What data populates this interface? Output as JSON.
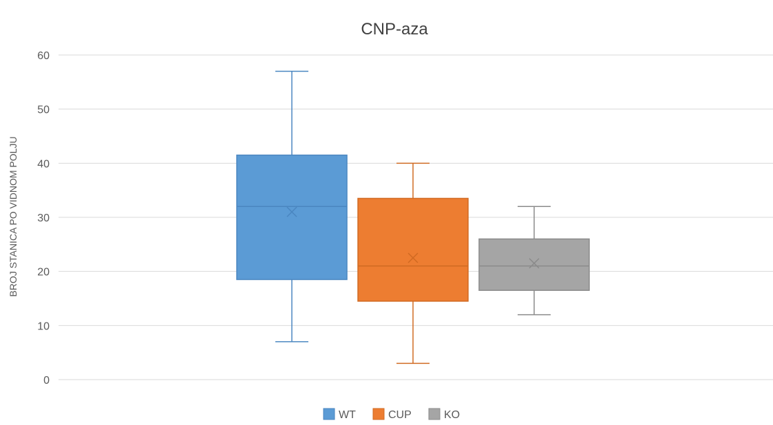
{
  "chart_data": {
    "type": "boxplot",
    "title": "CNP-aza",
    "xlabel": "",
    "ylabel": "BROJ STANICA PO VIDNOM POLJU",
    "ylim": [
      0,
      60
    ],
    "yticks": [
      "0",
      "10",
      "20",
      "30",
      "40",
      "50",
      "60"
    ],
    "grid": true,
    "legend_position": "bottom",
    "series": [
      {
        "name": "WT",
        "color": "#5b9bd5",
        "min": 7,
        "q1": 18.5,
        "median": 32,
        "q3": 41.5,
        "max": 57,
        "mean": 31
      },
      {
        "name": "CUP",
        "color": "#ed7d31",
        "min": 3,
        "q1": 14.5,
        "median": 21,
        "q3": 33.5,
        "max": 40,
        "mean": 22.5
      },
      {
        "name": "KO",
        "color": "#a5a5a5",
        "min": 12,
        "q1": 16.5,
        "median": 21,
        "q3": 26,
        "max": 32,
        "mean": 21.5
      }
    ]
  }
}
